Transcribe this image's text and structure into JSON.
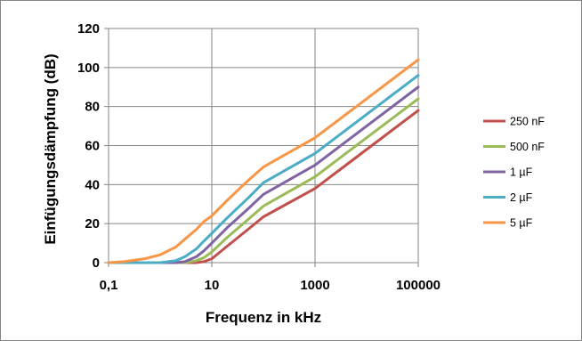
{
  "chart_data": {
    "type": "line",
    "xlabel": "Frequenz in kHz",
    "ylabel": "Einfügungsdämpfung (dB)",
    "x_scale": "log",
    "xlim": [
      0.1,
      100000
    ],
    "ylim": [
      0,
      120
    ],
    "x_ticks": [
      0.1,
      10,
      1000,
      100000
    ],
    "x_tick_labels": [
      "0,1",
      "10",
      "1000",
      "100000"
    ],
    "y_ticks": [
      0,
      20,
      40,
      60,
      80,
      100,
      120
    ],
    "y_tick_labels": [
      "0",
      "20",
      "40",
      "60",
      "80",
      "100",
      "120"
    ],
    "grid": "vertical and horizontal",
    "legend_position": "right",
    "series": [
      {
        "name": "250 nF",
        "color": "#C0504D",
        "x": [
          0.1,
          1,
          3,
          5,
          7,
          10,
          20,
          50,
          100,
          1000,
          10000,
          100000
        ],
        "y": [
          0,
          0,
          0,
          0,
          0.5,
          2,
          8.5,
          17,
          23.5,
          38,
          58,
          78
        ]
      },
      {
        "name": "500 nF",
        "color": "#9BBB59",
        "x": [
          0.1,
          1,
          2,
          3,
          5,
          7,
          10,
          20,
          50,
          100,
          1000,
          10000,
          100000
        ],
        "y": [
          0,
          0,
          0,
          0,
          1,
          2.5,
          5.5,
          13,
          22,
          29,
          44,
          64,
          84
        ]
      },
      {
        "name": "1 µF",
        "color": "#8064A2",
        "x": [
          0.1,
          1,
          2,
          3,
          5,
          7,
          10,
          20,
          50,
          100,
          1000,
          10000,
          100000
        ],
        "y": [
          0,
          0,
          0,
          0.5,
          3,
          6,
          10,
          18,
          27.5,
          35,
          50,
          70,
          90
        ]
      },
      {
        "name": "2 µF",
        "color": "#4BACC6",
        "x": [
          0.1,
          0.5,
          1,
          2,
          3,
          5,
          7,
          10,
          20,
          50,
          100,
          1000,
          10000,
          100000
        ],
        "y": [
          0,
          0,
          0,
          1,
          3,
          7,
          11,
          15,
          23,
          33,
          41,
          56,
          76,
          96
        ]
      },
      {
        "name": "5 µF",
        "color": "#F79646",
        "x": [
          0.1,
          0.2,
          0.5,
          1,
          2,
          3,
          5,
          7,
          10,
          20,
          50,
          100,
          1000,
          10000,
          100000
        ],
        "y": [
          0,
          0.5,
          2,
          4,
          8,
          12,
          17,
          21,
          24,
          32,
          42,
          49,
          64,
          84,
          104
        ]
      }
    ]
  }
}
